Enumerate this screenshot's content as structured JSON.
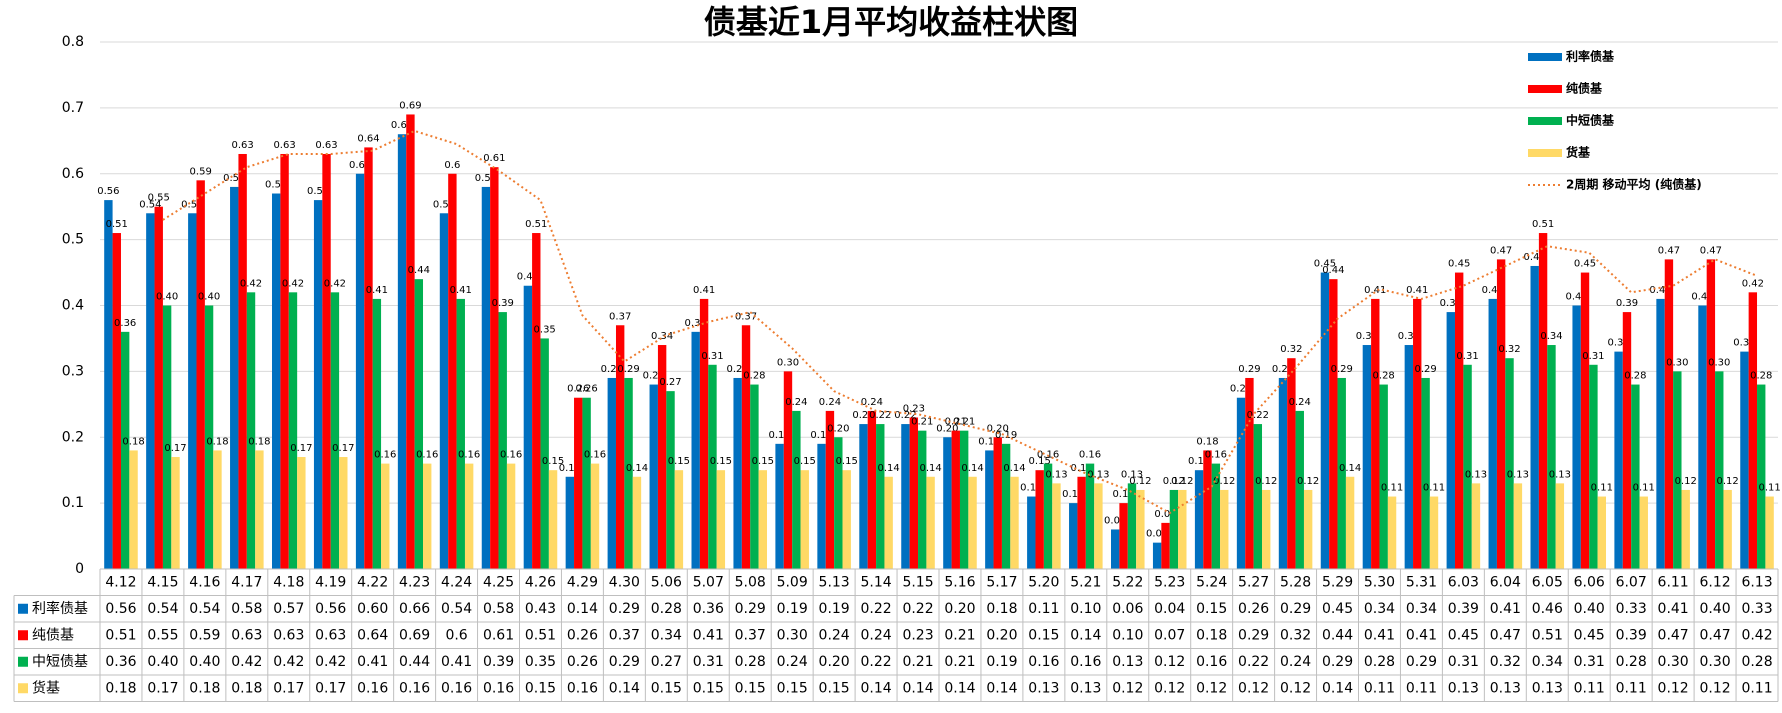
{
  "chart_data": {
    "type": "bar",
    "title": "债基近1月平均收益柱状图",
    "categories": [
      "4.12",
      "4.15",
      "4.16",
      "4.17",
      "4.18",
      "4.19",
      "4.22",
      "4.23",
      "4.24",
      "4.25",
      "4.26",
      "4.29",
      "4.30",
      "5.06",
      "5.07",
      "5.08",
      "5.09",
      "5.13",
      "5.14",
      "5.15",
      "5.16",
      "5.17",
      "5.20",
      "5.21",
      "5.22",
      "5.23",
      "5.24",
      "5.27",
      "5.28",
      "5.29",
      "5.30",
      "5.31",
      "6.03",
      "6.04",
      "6.05",
      "6.06",
      "6.07",
      "6.11",
      "6.12",
      "6.13"
    ],
    "series": [
      {
        "name": "利率债基",
        "color": "#0070c0",
        "values": [
          0.56,
          0.54,
          0.54,
          0.58,
          0.57,
          0.56,
          0.6,
          0.66,
          0.54,
          0.58,
          0.43,
          0.14,
          0.29,
          0.28,
          0.36,
          0.29,
          0.19,
          0.19,
          0.22,
          0.22,
          0.2,
          0.18,
          0.11,
          0.1,
          0.06,
          0.04,
          0.15,
          0.26,
          0.29,
          0.45,
          0.34,
          0.34,
          0.39,
          0.41,
          0.46,
          0.4,
          0.33,
          0.41,
          0.4,
          0.33
        ],
        "value_labels": [
          "0.56",
          "0.54",
          "0.54",
          "0.58",
          "0.57",
          "0.56",
          "0.60",
          "0.66",
          "0.54",
          "0.58",
          "0.43",
          "0.14",
          "0.29",
          "0.28",
          "0.36",
          "0.29",
          "0.19",
          "0.19",
          "0.22",
          "0.22",
          "0.20",
          "0.18",
          "0.11",
          "0.10",
          "0.06",
          "0.04",
          "0.15",
          "0.26",
          "0.29",
          "0.45",
          "0.34",
          "0.34",
          "0.39",
          "0.41",
          "0.46",
          "0.40",
          "0.33",
          "0.41",
          "0.40",
          "0.33"
        ]
      },
      {
        "name": "纯债基",
        "color": "#ff0000",
        "values": [
          0.51,
          0.55,
          0.59,
          0.63,
          0.63,
          0.63,
          0.64,
          0.69,
          0.6,
          0.61,
          0.51,
          0.26,
          0.37,
          0.34,
          0.41,
          0.37,
          0.3,
          0.24,
          0.24,
          0.23,
          0.21,
          0.2,
          0.15,
          0.14,
          0.1,
          0.07,
          0.18,
          0.29,
          0.32,
          0.44,
          0.41,
          0.41,
          0.45,
          0.47,
          0.51,
          0.45,
          0.39,
          0.47,
          0.47,
          0.42
        ],
        "value_labels": [
          "0.51",
          "0.55",
          "0.59",
          "0.63",
          "0.63",
          "0.63",
          "0.64",
          "0.69",
          "0.6",
          "0.61",
          "0.51",
          "0.26",
          "0.37",
          "0.34",
          "0.41",
          "0.37",
          "0.30",
          "0.24",
          "0.24",
          "0.23",
          "0.21",
          "0.20",
          "0.15",
          "0.14",
          "0.10",
          "0.07",
          "0.18",
          "0.29",
          "0.32",
          "0.44",
          "0.41",
          "0.41",
          "0.45",
          "0.47",
          "0.51",
          "0.45",
          "0.39",
          "0.47",
          "0.47",
          "0.42"
        ]
      },
      {
        "name": "中短债基",
        "color": "#00b050",
        "values": [
          0.36,
          0.4,
          0.4,
          0.42,
          0.42,
          0.42,
          0.41,
          0.44,
          0.41,
          0.39,
          0.35,
          0.26,
          0.29,
          0.27,
          0.31,
          0.28,
          0.24,
          0.2,
          0.22,
          0.21,
          0.21,
          0.19,
          0.16,
          0.16,
          0.13,
          0.12,
          0.16,
          0.22,
          0.24,
          0.29,
          0.28,
          0.29,
          0.31,
          0.32,
          0.34,
          0.31,
          0.28,
          0.3,
          0.3,
          0.28
        ],
        "value_labels": [
          "0.36",
          "0.40",
          "0.40",
          "0.42",
          "0.42",
          "0.42",
          "0.41",
          "0.44",
          "0.41",
          "0.39",
          "0.35",
          "0.26",
          "0.29",
          "0.27",
          "0.31",
          "0.28",
          "0.24",
          "0.20",
          "0.22",
          "0.21",
          "0.21",
          "0.19",
          "0.16",
          "0.16",
          "0.13",
          "0.12",
          "0.16",
          "0.22",
          "0.24",
          "0.29",
          "0.28",
          "0.29",
          "0.31",
          "0.32",
          "0.34",
          "0.31",
          "0.28",
          "0.30",
          "0.30",
          "0.28"
        ]
      },
      {
        "name": "货基",
        "color": "#ffd966",
        "values": [
          0.18,
          0.17,
          0.18,
          0.18,
          0.17,
          0.17,
          0.16,
          0.16,
          0.16,
          0.16,
          0.15,
          0.16,
          0.14,
          0.15,
          0.15,
          0.15,
          0.15,
          0.15,
          0.14,
          0.14,
          0.14,
          0.14,
          0.13,
          0.13,
          0.12,
          0.12,
          0.12,
          0.12,
          0.12,
          0.14,
          0.11,
          0.11,
          0.13,
          0.13,
          0.13,
          0.11,
          0.11,
          0.12,
          0.12,
          0.11
        ],
        "value_labels": [
          "0.18",
          "0.17",
          "0.18",
          "0.18",
          "0.17",
          "0.17",
          "0.16",
          "0.16",
          "0.16",
          "0.16",
          "0.15",
          "0.16",
          "0.14",
          "0.15",
          "0.15",
          "0.15",
          "0.15",
          "0.15",
          "0.14",
          "0.14",
          "0.14",
          "0.14",
          "0.13",
          "0.13",
          "0.12",
          "0.12",
          "0.12",
          "0.12",
          "0.12",
          "0.14",
          "0.11",
          "0.11",
          "0.13",
          "0.13",
          "0.13",
          "0.11",
          "0.11",
          "0.12",
          "0.12",
          "0.11"
        ]
      }
    ],
    "trendline": {
      "name": "2周期 移动平均 (纯债基)",
      "series": 1,
      "period": 2,
      "color": "#ed7d31"
    },
    "ylim": [
      0,
      0.8
    ],
    "yticks": [
      0,
      0.1,
      0.2,
      0.3,
      0.4,
      0.5,
      0.6,
      0.7,
      0.8
    ],
    "grid": true,
    "legend": "top-right",
    "data_table": true
  }
}
